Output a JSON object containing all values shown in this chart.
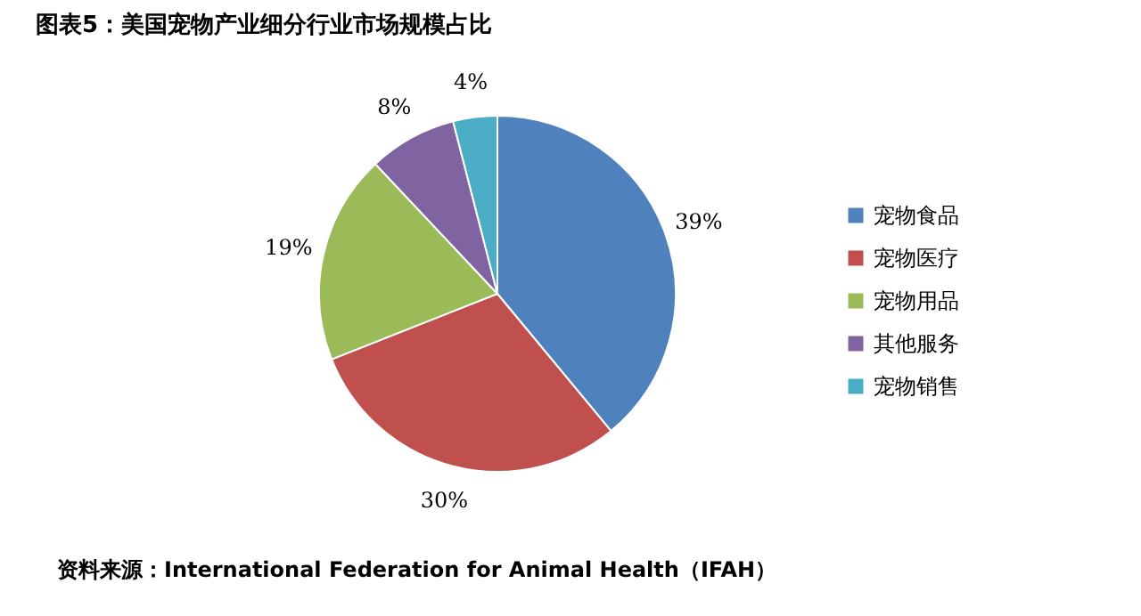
{
  "chart_data": {
    "type": "pie",
    "title": "图表5：美国宠物产业细分行业市场规模占比",
    "categories": [
      "宠物食品",
      "宠物医疗",
      "宠物用品",
      "其他服务",
      "宠物销售"
    ],
    "values": [
      39,
      30,
      19,
      8,
      4
    ],
    "value_labels": [
      "39%",
      "30%",
      "19%",
      "8%",
      "4%"
    ],
    "colors": [
      "#4f81bd",
      "#c0504d",
      "#9bbb59",
      "#8064a2",
      "#4bacc6"
    ],
    "legend": "right",
    "annotations": [
      "资料来源：International Federation for Animal Health（IFAH）"
    ]
  }
}
